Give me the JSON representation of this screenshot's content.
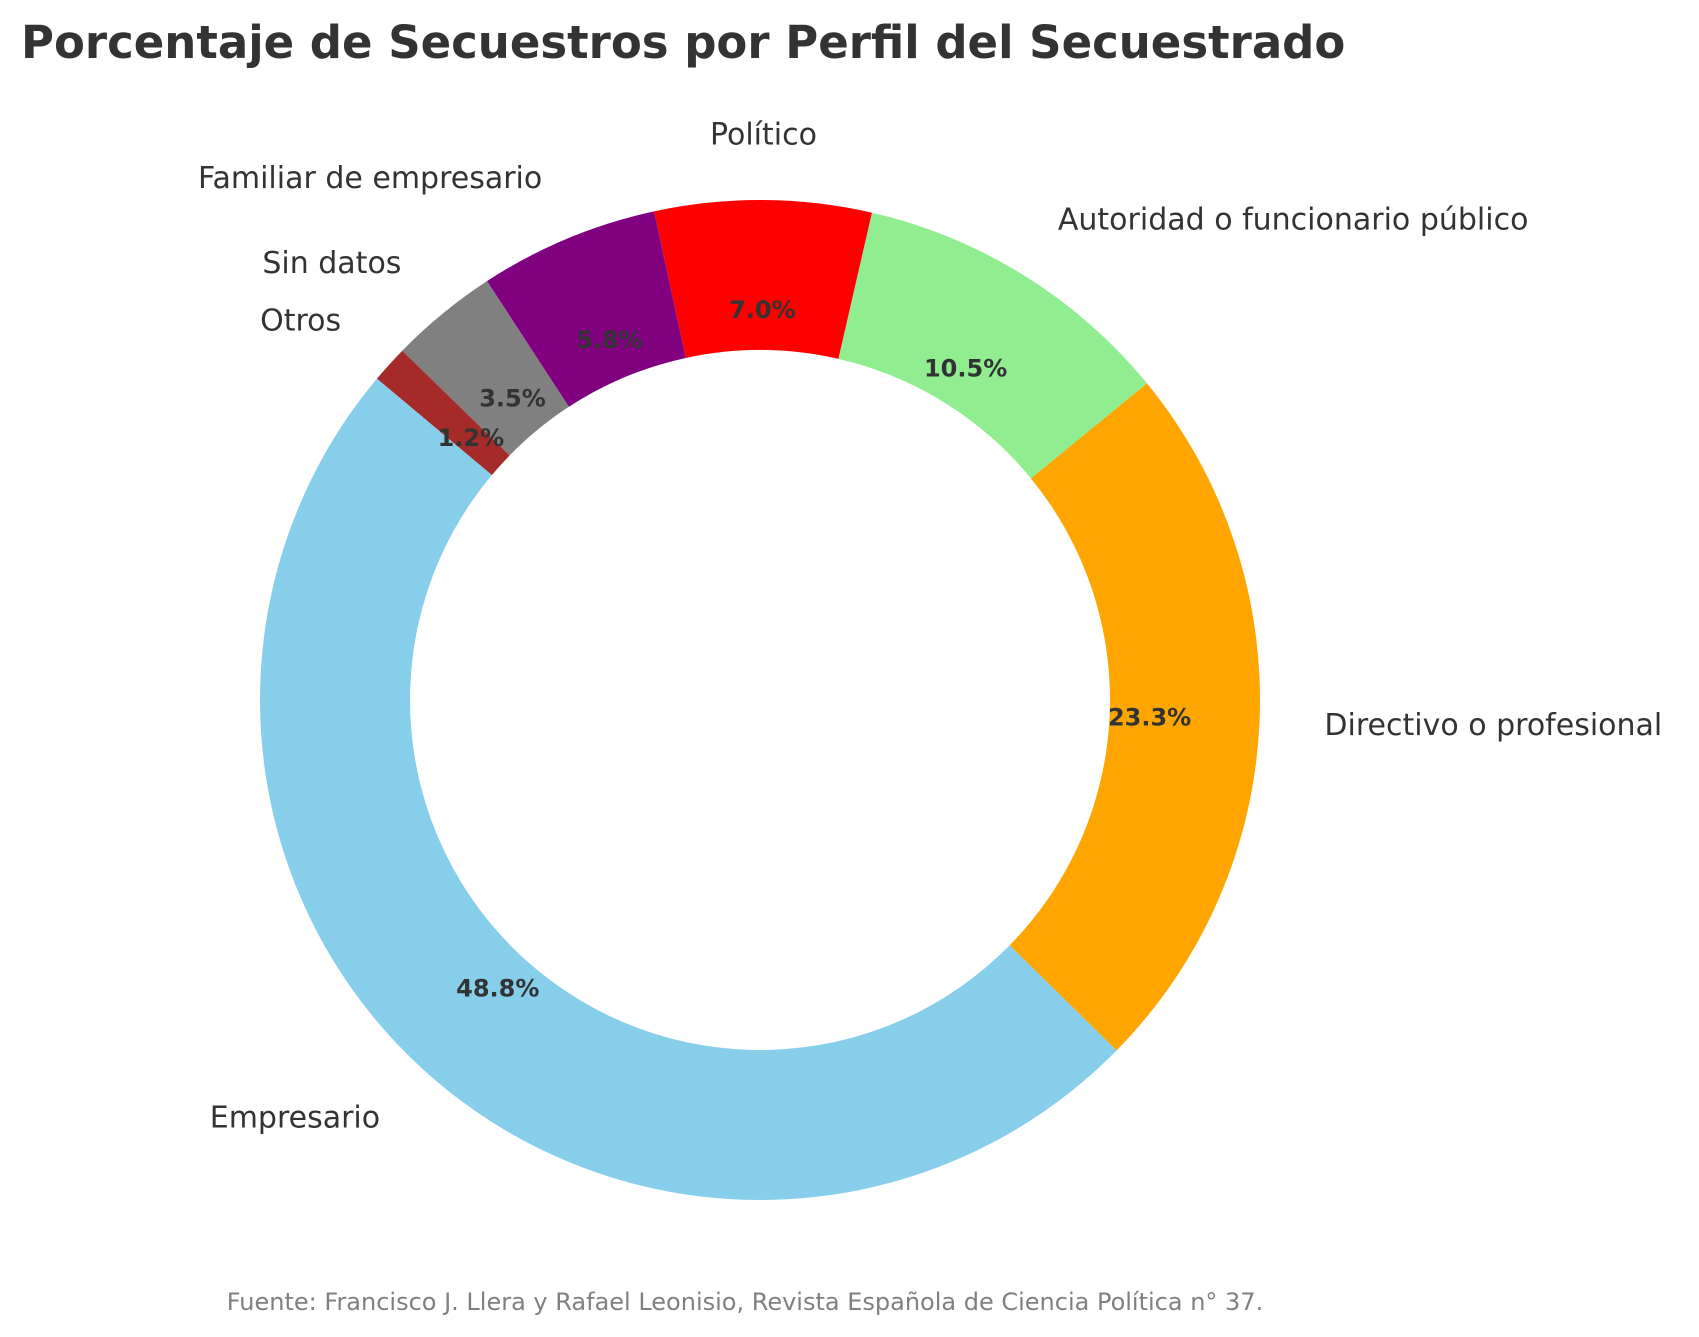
{
  "chart_data": {
    "type": "pie",
    "variant": "donut",
    "title": "Porcentaje de Secuestros por Perfil del Secuestrado",
    "source": "Fuente: Francisco J. Llera y Rafael Leonisio, Revista Española de Ciencia Política n° 37.",
    "start_angle_deg": 140,
    "direction": "counterclockwise",
    "slices": [
      {
        "label": "Empresario",
        "value": 48.8,
        "display": "48.8%",
        "color": "#87CEEB"
      },
      {
        "label": "Directivo o profesional",
        "value": 23.3,
        "display": "23.3%",
        "color": "#FFA500"
      },
      {
        "label": "Autoridad o funcionario público",
        "value": 10.5,
        "display": "10.5%",
        "color": "#90EE90"
      },
      {
        "label": "Político",
        "value": 7.0,
        "display": "7.0%",
        "color": "#FF0000"
      },
      {
        "label": "Familiar de empresario",
        "value": 5.8,
        "display": "5.8%",
        "color": "#800080"
      },
      {
        "label": "Sin datos",
        "value": 3.5,
        "display": "3.5%",
        "color": "#808080"
      },
      {
        "label": "Otros",
        "value": 1.2,
        "display": "1.2%",
        "color": "#A52A2A"
      }
    ],
    "legend": "none"
  }
}
